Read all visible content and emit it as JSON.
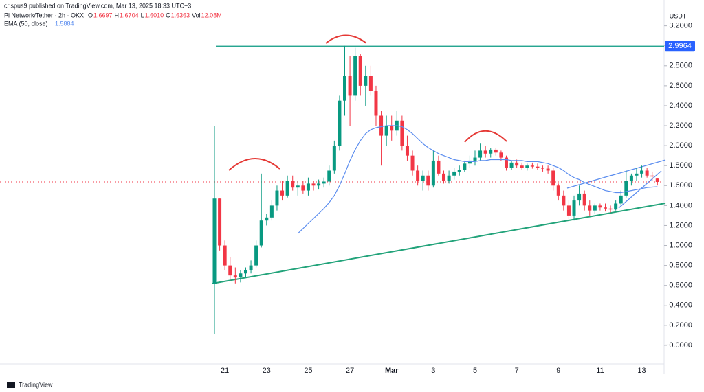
{
  "publisher": "crispus9 published on TradingView.com, Mar 13, 2025 18:33 UTC+3",
  "brand": "TradingView",
  "chart_data": {
    "type": "candlestick",
    "title": "Pi Network/Tether · 2h · OKX",
    "legend_fields": [
      {
        "key": "O",
        "label": "1.6697"
      },
      {
        "key": "H",
        "label": "1.6704"
      },
      {
        "key": "L",
        "label": "1.6010"
      },
      {
        "key": "C",
        "label": "1.6363"
      },
      {
        "key": "Vol",
        "label": "12.08M"
      }
    ],
    "y_unit": "USDT",
    "up_color": "#089981",
    "down_color": "#f23645",
    "categories": [
      null,
      null,
      "21",
      null,
      null,
      null,
      null,
      null,
      null,
      null,
      "23",
      null,
      null,
      null,
      null,
      null,
      null,
      null,
      "25",
      null,
      null,
      null,
      null,
      null,
      null,
      null,
      "27",
      null,
      null,
      null,
      null,
      null,
      null,
      null,
      "Mar",
      null,
      null,
      null,
      null,
      null,
      null,
      null,
      "3",
      null,
      null,
      null,
      null,
      null,
      null,
      null,
      "5",
      null,
      null,
      null,
      null,
      null,
      null,
      null,
      "7",
      null,
      null,
      null,
      null,
      null,
      null,
      null,
      "9",
      null,
      null,
      null,
      null,
      null,
      null,
      null,
      "11",
      null,
      null,
      null,
      null,
      null,
      null,
      null,
      "13",
      null,
      null,
      null
    ],
    "open": [
      0.62,
      1.47,
      1.0,
      0.8,
      0.7,
      0.68,
      0.72,
      0.75,
      0.8,
      1.0,
      1.25,
      1.28,
      1.4,
      1.55,
      1.5,
      1.65,
      1.58,
      1.6,
      1.55,
      1.62,
      1.6,
      1.62,
      1.64,
      1.75,
      2.0,
      2.45,
      2.7,
      2.5,
      2.9,
      2.6,
      2.7,
      2.55,
      2.3,
      2.1,
      2.2,
      2.15,
      2.25,
      2.0,
      1.9,
      1.75,
      1.65,
      1.7,
      1.6,
      1.85,
      1.72,
      1.65,
      1.7,
      1.74,
      1.76,
      1.82,
      1.85,
      1.88,
      1.95,
      1.92,
      1.96,
      1.93,
      1.88,
      1.78,
      1.83,
      1.8,
      1.78,
      1.8,
      1.79,
      1.78,
      1.77,
      1.75,
      1.6,
      1.5,
      1.4,
      1.3,
      1.45,
      1.52,
      1.4,
      1.35,
      1.4,
      1.38,
      1.37,
      1.36,
      1.42,
      1.5,
      1.65,
      1.7,
      1.72,
      1.75,
      1.7,
      1.6697
    ],
    "high": [
      2.2,
      1.47,
      1.05,
      0.88,
      0.78,
      0.75,
      0.78,
      0.85,
      1.05,
      1.72,
      1.32,
      1.45,
      1.6,
      1.65,
      1.7,
      1.7,
      1.65,
      1.65,
      1.68,
      1.65,
      1.66,
      1.68,
      1.8,
      2.05,
      2.5,
      3.0,
      2.9,
      2.98,
      2.92,
      2.8,
      2.8,
      2.6,
      2.35,
      2.3,
      2.3,
      2.35,
      2.3,
      2.1,
      1.95,
      1.8,
      1.75,
      1.75,
      1.95,
      1.9,
      1.75,
      1.75,
      1.78,
      1.8,
      1.85,
      1.9,
      1.95,
      2.02,
      2.0,
      1.98,
      1.98,
      1.95,
      1.9,
      1.85,
      1.86,
      1.83,
      1.82,
      1.83,
      1.82,
      1.8,
      1.8,
      1.78,
      1.62,
      1.55,
      1.45,
      1.5,
      1.6,
      1.55,
      1.45,
      1.42,
      1.42,
      1.42,
      1.4,
      1.45,
      1.55,
      1.75,
      1.72,
      1.78,
      1.8,
      1.78,
      1.74,
      1.6704
    ],
    "low": [
      0.11,
      0.95,
      0.75,
      0.65,
      0.62,
      0.63,
      0.68,
      0.72,
      0.78,
      0.98,
      1.2,
      1.25,
      1.35,
      1.45,
      1.48,
      1.55,
      1.5,
      1.52,
      1.5,
      1.55,
      1.56,
      1.58,
      1.6,
      1.72,
      1.95,
      2.3,
      2.2,
      2.45,
      2.5,
      2.4,
      2.5,
      2.2,
      1.8,
      2.0,
      2.05,
      2.1,
      1.95,
      1.85,
      1.7,
      1.6,
      1.55,
      1.55,
      1.58,
      1.7,
      1.62,
      1.62,
      1.66,
      1.7,
      1.74,
      1.78,
      1.8,
      1.85,
      1.88,
      1.88,
      1.9,
      1.85,
      1.75,
      1.76,
      1.78,
      1.76,
      1.75,
      1.77,
      1.76,
      1.74,
      1.72,
      1.55,
      1.45,
      1.35,
      1.25,
      1.25,
      1.4,
      1.35,
      1.3,
      1.32,
      1.35,
      1.34,
      1.33,
      1.35,
      1.4,
      1.48,
      1.6,
      1.65,
      1.68,
      1.68,
      1.65,
      1.601
    ],
    "close": [
      1.47,
      1.0,
      0.8,
      0.7,
      0.68,
      0.72,
      0.75,
      0.8,
      1.0,
      1.25,
      1.28,
      1.4,
      1.55,
      1.5,
      1.65,
      1.58,
      1.6,
      1.55,
      1.62,
      1.6,
      1.62,
      1.64,
      1.75,
      2.0,
      2.45,
      2.7,
      2.5,
      2.9,
      2.6,
      2.7,
      2.55,
      2.3,
      2.1,
      2.2,
      2.15,
      2.25,
      2.0,
      1.9,
      1.75,
      1.65,
      1.7,
      1.6,
      1.85,
      1.72,
      1.65,
      1.7,
      1.74,
      1.76,
      1.82,
      1.85,
      1.88,
      1.95,
      1.92,
      1.96,
      1.93,
      1.88,
      1.78,
      1.83,
      1.8,
      1.78,
      1.8,
      1.79,
      1.78,
      1.77,
      1.75,
      1.6,
      1.5,
      1.4,
      1.3,
      1.45,
      1.52,
      1.4,
      1.35,
      1.4,
      1.38,
      1.37,
      1.36,
      1.42,
      1.5,
      1.65,
      1.7,
      1.72,
      1.75,
      1.7,
      1.69,
      1.6363
    ],
    "indicators": [
      {
        "name": "EMA (50, close)",
        "color": "#5b8def",
        "value_labels_last": "1.5884",
        "values": [
          null,
          null,
          null,
          null,
          null,
          null,
          null,
          null,
          null,
          null,
          null,
          null,
          null,
          null,
          null,
          null,
          1.12,
          1.17,
          1.22,
          1.27,
          1.32,
          1.37,
          1.43,
          1.5,
          1.6,
          1.72,
          1.85,
          1.96,
          2.05,
          2.12,
          2.16,
          2.18,
          2.19,
          2.2,
          2.2,
          2.2,
          2.19,
          2.16,
          2.12,
          2.07,
          2.02,
          1.98,
          1.95,
          1.92,
          1.9,
          1.88,
          1.86,
          1.85,
          1.84,
          1.84,
          1.84,
          1.85,
          1.85,
          1.86,
          1.86,
          1.86,
          1.86,
          1.85,
          1.85,
          1.85,
          1.84,
          1.84,
          1.84,
          1.83,
          1.82,
          1.8,
          1.78,
          1.75,
          1.71,
          1.68,
          1.66,
          1.63,
          1.61,
          1.59,
          1.57,
          1.55,
          1.54,
          1.53,
          1.53,
          1.54,
          1.55,
          1.56,
          1.57,
          1.58,
          1.585,
          1.5884
        ]
      }
    ],
    "hline": {
      "value": 2.9964,
      "label": "2.9964",
      "color": "#089981"
    },
    "ylim": [
      -0.186,
      3.39
    ],
    "yticks": [
      {
        "value": 3.2,
        "label": "3.2000"
      },
      {
        "value": 3.0,
        "label": "3.0000"
      },
      {
        "value": 2.8,
        "label": "2.8000"
      },
      {
        "value": 2.6,
        "label": "2.6000"
      },
      {
        "value": 2.4,
        "label": "2.4000"
      },
      {
        "value": 2.2,
        "label": "2.2000"
      },
      {
        "value": 2.0,
        "label": "2.0000"
      },
      {
        "value": 1.8,
        "label": "1.8000"
      },
      {
        "value": 1.6,
        "label": "1.6000"
      },
      {
        "value": 1.4,
        "label": "1.4000"
      },
      {
        "value": 1.2,
        "label": "1.2000"
      },
      {
        "value": 1.0,
        "label": "1.0000"
      },
      {
        "value": 0.8,
        "label": "0.8000"
      },
      {
        "value": 0.6,
        "label": "0.6000"
      },
      {
        "value": 0.4,
        "label": "0.4000"
      },
      {
        "value": 0.2,
        "label": "0.2000"
      },
      {
        "value": 0,
        "label": "−0.0000"
      }
    ]
  }
}
